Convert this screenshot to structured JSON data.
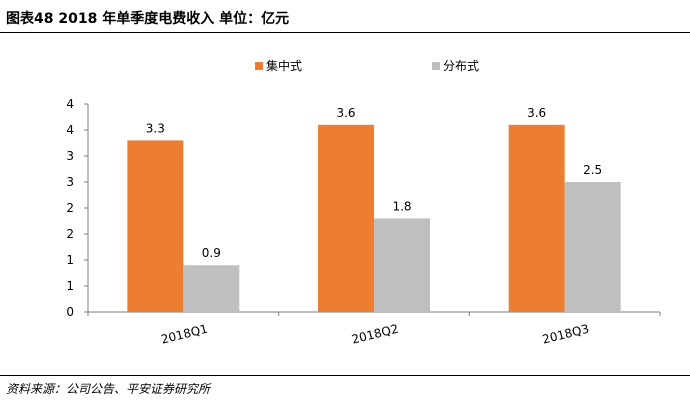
{
  "caption": "图表48   2018 年单季度电费收入   单位：亿元",
  "source": "资料来源：公司公告、平安证券研究所",
  "chart_data": {
    "type": "bar",
    "categories": [
      "2018Q1",
      "2018Q2",
      "2018Q3"
    ],
    "series": [
      {
        "name": "集中式",
        "values": [
          3.3,
          3.6,
          3.6
        ],
        "labels": [
          "3.3",
          "3.6",
          "3.6"
        ],
        "color": "#ED7D31"
      },
      {
        "name": "分布式",
        "values": [
          0.9,
          1.8,
          2.5
        ],
        "labels": [
          "0.9",
          "1.8",
          "2.5"
        ],
        "color": "#BFBFBF"
      }
    ],
    "ylim": [
      0,
      4
    ],
    "yticks": [
      0,
      0.5,
      1,
      1.5,
      2,
      2.5,
      3,
      3.5,
      4
    ],
    "ytick_labels": [
      "0",
      "1",
      "1",
      "2",
      "2",
      "3",
      "3",
      "4",
      "4"
    ],
    "legend_position": "top",
    "grid": false
  }
}
